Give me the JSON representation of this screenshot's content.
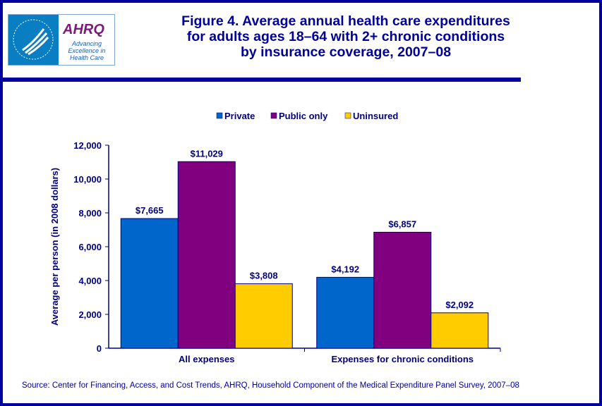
{
  "header": {
    "title_lines": [
      "Figure 4. Average annual health care expenditures",
      "for adults ages 18–64 with 2+ chronic conditions",
      "by insurance coverage, 2007–08"
    ],
    "logo": {
      "brand": "AHRQ",
      "tagline": "Advancing Excellence in Health Care"
    }
  },
  "source": "Source: Center for Financing, Access, and Cost Trends, AHRQ, Household Component of the Medical Expenditure Panel Survey, 2007–08",
  "chart_data": {
    "type": "bar",
    "title": "Figure 4. Average annual health care expenditures for adults ages 18–64 with 2+ chronic conditions by insurance coverage, 2007–08",
    "categories": [
      "All expenses",
      "Expenses for chronic conditions"
    ],
    "series": [
      {
        "name": "Private",
        "color": "#0066cc",
        "values": [
          7665,
          4192
        ],
        "labels": [
          "$7,665",
          "$4,192"
        ]
      },
      {
        "name": "Public only",
        "color": "#800080",
        "values": [
          11029,
          6857
        ],
        "labels": [
          "$11,029",
          "$6,857"
        ]
      },
      {
        "name": "Uninsured",
        "color": "#ffcc00",
        "values": [
          3808,
          2092
        ],
        "labels": [
          "$3,808",
          "$2,092"
        ]
      }
    ],
    "xlabel": "",
    "ylabel": "Average per person (in 2008 dollars)",
    "ylim": [
      0,
      12000
    ],
    "yticks": [
      0,
      2000,
      4000,
      6000,
      8000,
      10000,
      12000
    ],
    "ytick_labels": [
      "0",
      "2,000",
      "4,000",
      "6,000",
      "8,000",
      "10,000",
      "12,000"
    ],
    "grid": false,
    "legend": "top"
  }
}
